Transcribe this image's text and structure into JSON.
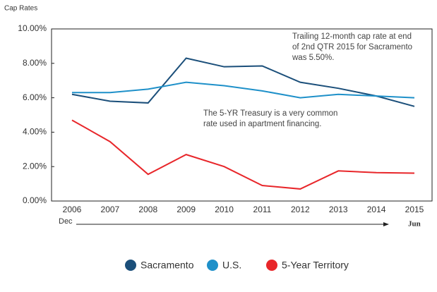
{
  "chart_data": {
    "type": "line",
    "y_axis_label": "Cap Rates",
    "categories": [
      "2006",
      "2007",
      "2008",
      "2009",
      "2010",
      "2011",
      "2012",
      "2013",
      "2014",
      "2015"
    ],
    "series": [
      {
        "name": "Sacramento",
        "color": "#1b4f7a",
        "values": [
          6.2,
          5.8,
          5.7,
          8.3,
          7.8,
          7.85,
          6.9,
          6.55,
          6.1,
          5.5
        ]
      },
      {
        "name": "U.S.",
        "color": "#1e90c9",
        "values": [
          6.3,
          6.3,
          6.5,
          6.9,
          6.7,
          6.4,
          6.0,
          6.2,
          6.1,
          6.0
        ]
      },
      {
        "name": "5-Year Territory",
        "color": "#e8262a",
        "values": [
          4.7,
          3.45,
          1.55,
          2.7,
          2.0,
          0.9,
          0.7,
          1.75,
          1.65,
          1.62
        ]
      }
    ],
    "ylim": [
      0,
      10
    ],
    "yticks": [
      {
        "value": 0,
        "label": "0.00%"
      },
      {
        "value": 2,
        "label": "2.00%"
      },
      {
        "value": 4,
        "label": "4.00%"
      },
      {
        "value": 6,
        "label": "6.00%"
      },
      {
        "value": 8,
        "label": "8.00%"
      },
      {
        "value": 10,
        "label": "10.00%"
      }
    ],
    "annotations": [
      {
        "lines": [
          "Trailing 12-month cap rate at end",
          "of 2nd QTR 2015 for Sacramento",
          "was 5.50%."
        ]
      },
      {
        "lines": [
          "The 5-YR Treasury is a very common",
          "rate used in apartment financing."
        ]
      }
    ],
    "x_range_labels": [
      "Dec",
      "Jun"
    ]
  }
}
